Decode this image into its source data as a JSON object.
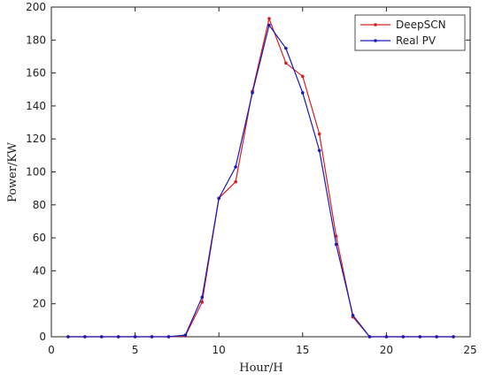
{
  "chart_data": {
    "type": "line",
    "x_label": "Hour/H",
    "y_label": "Power/KW",
    "x": [
      1,
      2,
      3,
      4,
      5,
      6,
      7,
      8,
      9,
      10,
      11,
      12,
      13,
      14,
      15,
      16,
      17,
      18,
      19,
      20,
      21,
      22,
      23,
      24
    ],
    "series": [
      {
        "name": "DeepSCN",
        "color": "#d62020",
        "values": [
          0,
          0,
          0,
          0,
          0,
          0,
          0,
          0.5,
          21,
          84,
          94,
          149,
          193,
          166,
          158,
          123,
          61,
          12,
          0,
          0,
          0,
          0,
          0,
          0
        ]
      },
      {
        "name": "Real PV",
        "color": "#1a1ab8",
        "values": [
          0,
          0,
          0,
          0,
          0,
          0,
          0,
          1,
          24,
          84,
          103,
          148,
          189,
          175,
          148,
          113,
          56,
          13,
          0,
          0,
          0,
          0,
          0,
          0
        ]
      }
    ],
    "xlim": [
      0,
      25
    ],
    "xticks": [
      0,
      5,
      10,
      15,
      20,
      25
    ],
    "ylim": [
      0,
      200
    ],
    "yticks": [
      0,
      20,
      40,
      60,
      80,
      100,
      120,
      140,
      160,
      180,
      200
    ],
    "legend": "upper right"
  }
}
